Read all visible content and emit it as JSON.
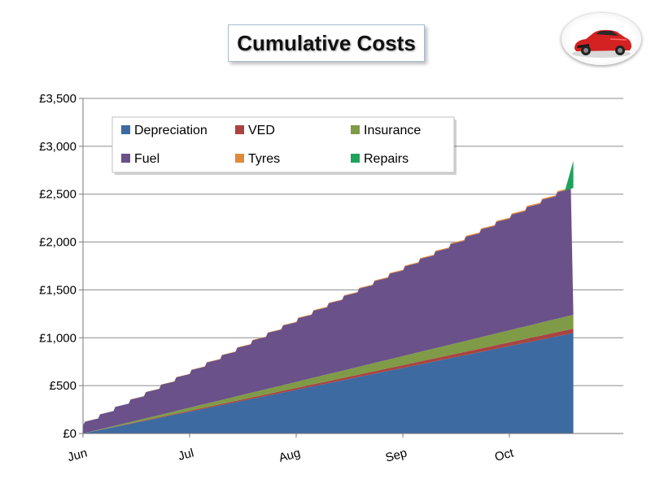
{
  "chart_data": {
    "type": "area",
    "stacked": true,
    "title": "Cumulative Costs",
    "xlabel": "",
    "ylabel": "",
    "ylim": [
      0,
      3500
    ],
    "yticks": [
      0,
      500,
      1000,
      1500,
      2000,
      2500,
      3000,
      3500
    ],
    "ytick_labels": [
      "£0",
      "£500",
      "£1,000",
      "£1,500",
      "£2,000",
      "£2,500",
      "£3,000",
      "£3,500"
    ],
    "x_axis": "months",
    "x_tick_labels": [
      "Jun",
      "Jul",
      "Aug",
      "Sep",
      "Oct"
    ],
    "x_months_end": 4.6,
    "grid": "horizontal",
    "legend_position": "top-left",
    "series": [
      {
        "name": "Depreciation",
        "color": "#3d6aa0",
        "x": [
          0,
          4.6
        ],
        "values": [
          0,
          1050
        ]
      },
      {
        "name": "VED",
        "color": "#a94442",
        "x": [
          0,
          4.6
        ],
        "values": [
          0,
          45
        ]
      },
      {
        "name": "Insurance",
        "color": "#7f9b47",
        "x": [
          0,
          4.6
        ],
        "values": [
          0,
          145
        ]
      },
      {
        "name": "Fuel",
        "color": "#6a5189",
        "fuel_step_months": 0.143,
        "values": [
          80,
          1320
        ]
      },
      {
        "name": "Tyres",
        "color": "#e08a3c",
        "x": [
          0,
          4.6
        ],
        "values": [
          0,
          12
        ]
      },
      {
        "name": "Repairs",
        "color": "#1fa35c",
        "x": [
          0,
          4.52,
          4.6
        ],
        "values": [
          0,
          0,
          285
        ]
      }
    ]
  }
}
